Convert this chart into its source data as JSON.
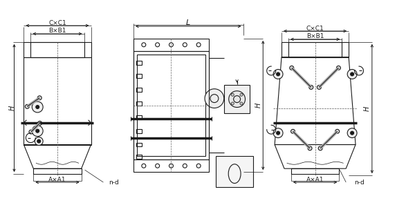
{
  "bg_color": "#ffffff",
  "line_color": "#1a1a1a",
  "lw": 0.8,
  "lw_thick": 2.5,
  "lw_thin": 0.5,
  "fig_width": 6.0,
  "fig_height": 3.1,
  "dpi": 100,
  "labels": {
    "CxC1": "C×C1",
    "BxB1": "B×B1",
    "AxA1": "A×A1",
    "nd": "n-d",
    "L": "L",
    "H": "H"
  }
}
